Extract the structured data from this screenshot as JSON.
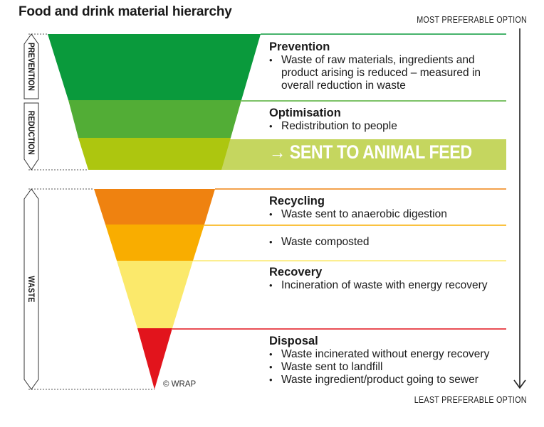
{
  "title": "Food and drink material hierarchy",
  "axis": {
    "top": "MOST PREFERABLE OPTION",
    "bottom": "LEAST PREFERABLE OPTION"
  },
  "side_labels": {
    "prevention": "PREVENTION",
    "reduction": "REDUCTION",
    "waste": "WASTE"
  },
  "colors": {
    "prevention": "#0a9a3c",
    "optimisation": "#52ad36",
    "animal_feed": "#adc60f",
    "animal_feed_band": "#c5d65f",
    "recycling": "#ef8210",
    "composted": "#f9ad00",
    "recovery": "#fbe96b",
    "disposal": "#e2141c"
  },
  "levels": {
    "prevention": {
      "heading": "Prevention",
      "items": [
        "Waste of raw materials, ingredients and",
        "product arising is reduced – measured in",
        "overall reduction in waste"
      ]
    },
    "optimisation": {
      "heading": "Optimisation",
      "items": [
        "Redistribution to people"
      ]
    },
    "animal_feed": {
      "label": "→ SENT TO ANIMAL FEED"
    },
    "recycling": {
      "heading": "Recycling",
      "items": [
        "Waste sent to anaerobic digestion"
      ]
    },
    "composted": {
      "items": [
        "Waste composted"
      ]
    },
    "recovery": {
      "heading": "Recovery",
      "items": [
        "Incineration of waste with energy recovery"
      ]
    },
    "disposal": {
      "heading": "Disposal",
      "items": [
        "Waste incinerated without energy recovery",
        "Waste sent to landfill",
        "Waste ingredient/product going to sewer"
      ]
    }
  },
  "credit": "© WRAP"
}
